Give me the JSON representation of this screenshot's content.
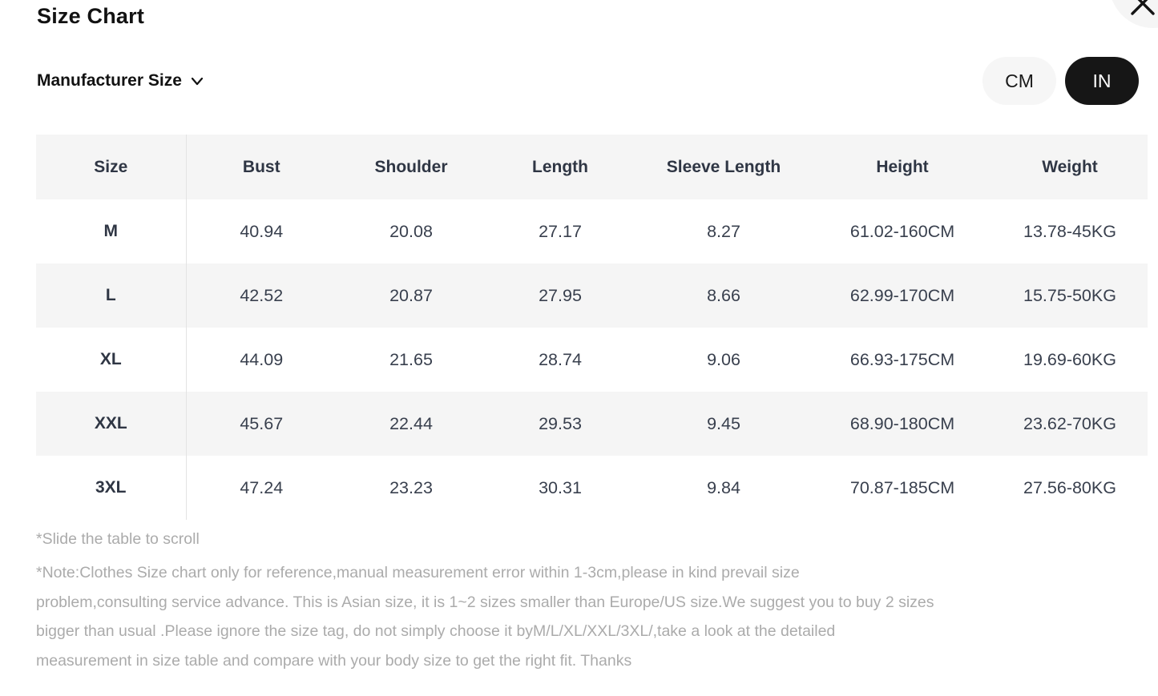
{
  "modal": {
    "title": "Size Chart"
  },
  "controls": {
    "size_standard_label": "Manufacturer Size",
    "units": [
      {
        "label": "CM",
        "selected": false
      },
      {
        "label": "IN",
        "selected": true
      }
    ]
  },
  "table": {
    "columns": [
      "Size",
      "Bust",
      "Shoulder",
      "Length",
      "Sleeve Length",
      "Height",
      "Weight"
    ],
    "rows": [
      [
        "M",
        "40.94",
        "20.08",
        "27.17",
        "8.27",
        "61.02-160CM",
        "13.78-45KG"
      ],
      [
        "L",
        "42.52",
        "20.87",
        "27.95",
        "8.66",
        "62.99-170CM",
        "15.75-50KG"
      ],
      [
        "XL",
        "44.09",
        "21.65",
        "28.74",
        "9.06",
        "66.93-175CM",
        "19.69-60KG"
      ],
      [
        "XXL",
        "45.67",
        "22.44",
        "29.53",
        "9.45",
        "68.90-180CM",
        "23.62-70KG"
      ],
      [
        "3XL",
        "47.24",
        "23.23",
        "30.31",
        "9.84",
        "70.87-185CM",
        "27.56-80KG"
      ]
    ]
  },
  "notes": {
    "slide_hint": "*Slide the table to scroll",
    "note_lines": [
      "*Note:Clothes Size chart only for reference,manual measurement error within 1-3cm,please in kind prevail size",
      "problem,consulting service advance. This is Asian size, it is 1~2 sizes smaller than Europe/US size.We suggest you to buy 2 sizes",
      "bigger than usual .Please ignore the size tag, do not simply choose it byM/L/XL/XXL/3XL/,take a look at the detailed",
      "measurement in size table and compare with your body size to get the right fit. Thanks"
    ]
  },
  "colors": {
    "accent_dark": "#161616",
    "stripe_bg": "#f5f5f5",
    "table_text": "#39404e",
    "header_text": "#2f3644",
    "note_text": "#ababab",
    "divider": "#e3e3e3"
  }
}
